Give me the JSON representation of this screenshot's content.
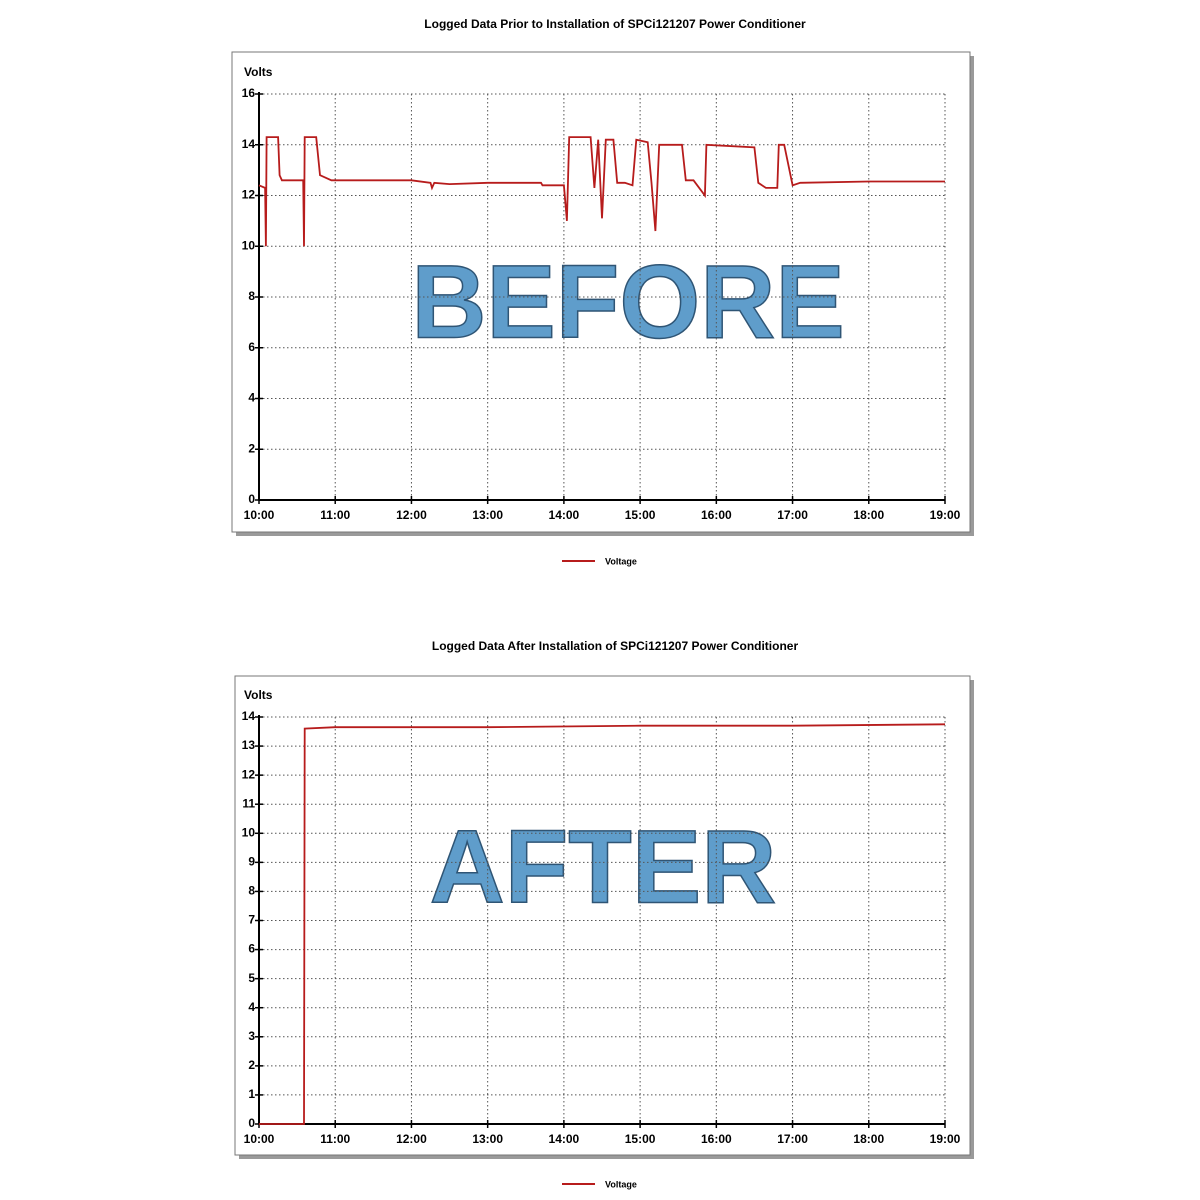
{
  "chart_data": [
    {
      "type": "line",
      "title": "Logged Data Prior to Installation of SPCi121207 Power Conditioner",
      "y_label": "Volts",
      "annotation": "BEFORE",
      "x": [
        10.0,
        10.08,
        10.09,
        10.1,
        10.25,
        10.27,
        10.3,
        10.45,
        10.58,
        10.59,
        10.6,
        10.75,
        10.8,
        10.95,
        11.3,
        11.5,
        12.0,
        12.25,
        12.27,
        12.3,
        12.5,
        13.0,
        13.7,
        13.72,
        14.0,
        14.04,
        14.07,
        14.35,
        14.4,
        14.45,
        14.5,
        14.55,
        14.65,
        14.7,
        14.8,
        14.9,
        14.95,
        15.1,
        15.15,
        15.2,
        15.25,
        15.55,
        15.6,
        15.7,
        15.85,
        15.87,
        16.5,
        16.55,
        16.65,
        16.8,
        16.82,
        16.89,
        17.0,
        17.1,
        18.0,
        19.0
      ],
      "series": [
        {
          "name": "Voltage",
          "color": "#b71c1c",
          "values": [
            12.4,
            12.3,
            10.0,
            14.3,
            14.3,
            12.8,
            12.6,
            12.6,
            12.6,
            10.0,
            14.3,
            14.3,
            12.8,
            12.6,
            12.6,
            12.6,
            12.6,
            12.5,
            12.3,
            12.5,
            12.45,
            12.5,
            12.5,
            12.4,
            12.4,
            11.0,
            14.3,
            14.3,
            12.3,
            14.2,
            11.1,
            14.2,
            14.2,
            12.5,
            12.5,
            12.4,
            14.2,
            14.1,
            12.5,
            10.6,
            14.0,
            14.0,
            12.6,
            12.6,
            12.0,
            14.0,
            13.9,
            12.5,
            12.3,
            12.3,
            14.0,
            14.0,
            12.4,
            12.5,
            12.55,
            12.55
          ]
        }
      ],
      "xlim": [
        10,
        19
      ],
      "xticks": [
        {
          "value": 10,
          "label": "10:00"
        },
        {
          "value": 11,
          "label": "11:00"
        },
        {
          "value": 12,
          "label": "12:00"
        },
        {
          "value": 13,
          "label": "13:00"
        },
        {
          "value": 14,
          "label": "14:00"
        },
        {
          "value": 15,
          "label": "15:00"
        },
        {
          "value": 16,
          "label": "16:00"
        },
        {
          "value": 17,
          "label": "17:00"
        },
        {
          "value": 18,
          "label": "18:00"
        },
        {
          "value": 19,
          "label": "19:00"
        }
      ],
      "ylim": [
        0,
        16
      ],
      "yticks": [
        0,
        2,
        4,
        6,
        8,
        10,
        12,
        14,
        16
      ],
      "grid": true
    },
    {
      "type": "line",
      "title": "Logged Data After Installation of SPCi121207 Power Conditioner",
      "y_label": "Volts",
      "annotation": "AFTER",
      "x": [
        10.0,
        10.59,
        10.6,
        11.0,
        13.0,
        15.0,
        17.0,
        19.0
      ],
      "series": [
        {
          "name": "Voltage",
          "color": "#b71c1c",
          "values": [
            0,
            0,
            13.6,
            13.65,
            13.65,
            13.7,
            13.7,
            13.75
          ]
        }
      ],
      "xlim": [
        10,
        19
      ],
      "xticks": [
        {
          "value": 10,
          "label": "10:00"
        },
        {
          "value": 11,
          "label": "11:00"
        },
        {
          "value": 12,
          "label": "12:00"
        },
        {
          "value": 13,
          "label": "13:00"
        },
        {
          "value": 14,
          "label": "14:00"
        },
        {
          "value": 15,
          "label": "15:00"
        },
        {
          "value": 16,
          "label": "16:00"
        },
        {
          "value": 17,
          "label": "17:00"
        },
        {
          "value": 18,
          "label": "18:00"
        },
        {
          "value": 19,
          "label": "19:00"
        }
      ],
      "ylim": [
        0,
        14
      ],
      "yticks": [
        0,
        1,
        2,
        3,
        4,
        5,
        6,
        7,
        8,
        9,
        10,
        11,
        12,
        13,
        14
      ],
      "grid": true
    }
  ]
}
